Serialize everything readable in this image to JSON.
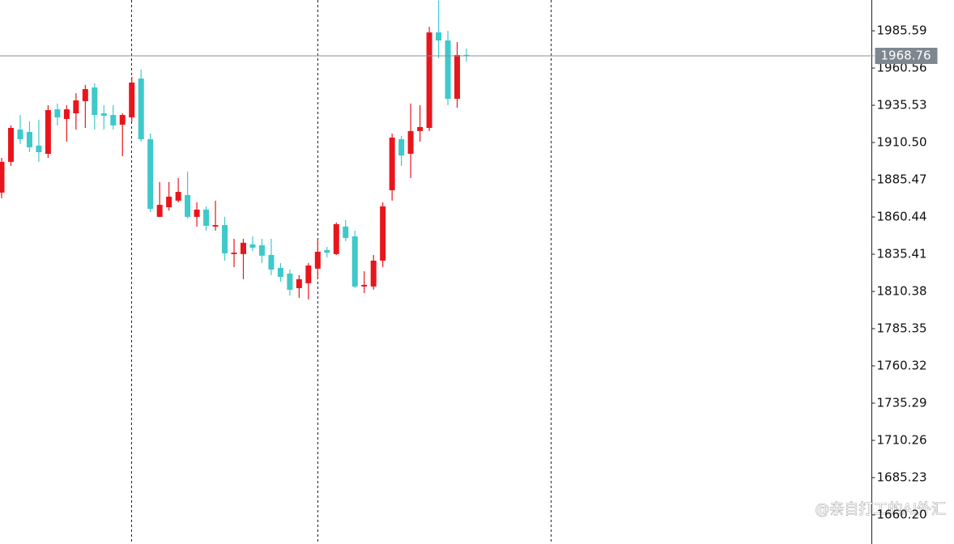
{
  "chart_data": {
    "type": "candlestick",
    "open": [
      1876.8,
      1897.5,
      1919.2,
      1917.6,
      1908.4,
      1902.9,
      1932.8,
      1926.3,
      1930.1,
      1938.3,
      1947.5,
      1930.1,
      1929.0,
      1922.5,
      1927.4,
      1953.5,
      1912.7,
      1860.5,
      1867.0,
      1871.4,
      1875.2,
      1860.5,
      1865.4,
      1854.0,
      1855.0,
      1835.5,
      1835.5,
      1842.0,
      1841.4,
      1834.9,
      1826.2,
      1822.4,
      1812.6,
      1815.9,
      1825.7,
      1838.2,
      1835.5,
      1854.0,
      1847.4,
      1813.7,
      1813.7,
      1831.1,
      1878.4,
      1912.7,
      1902.9,
      1918.2,
      1920.3,
      1984.5,
      1979.1,
      1939.9,
      1969.4
    ],
    "high": [
      1900.2,
      1922.0,
      1929.0,
      1924.7,
      1925.8,
      1935.6,
      1936.7,
      1935.6,
      1943.7,
      1949.2,
      1950.3,
      1935.6,
      1935.6,
      1930.1,
      1954.6,
      1959.5,
      1916.5,
      1883.9,
      1883.9,
      1886.6,
      1891.0,
      1870.3,
      1867.6,
      1871.4,
      1860.5,
      1845.8,
      1845.8,
      1847.4,
      1845.8,
      1845.8,
      1829.5,
      1825.1,
      1821.3,
      1829.5,
      1845.2,
      1840.3,
      1856.7,
      1858.3,
      1851.2,
      1824.0,
      1834.9,
      1870.3,
      1916.5,
      1914.9,
      1936.7,
      1935.6,
      1988.3,
      2006.0,
      1985.6,
      1978.0,
      1973.7
    ],
    "low": [
      1873.0,
      1894.8,
      1909.5,
      1904.0,
      1897.5,
      1900.2,
      1922.0,
      1911.1,
      1919.2,
      1920.3,
      1919.2,
      1919.2,
      1919.2,
      1901.3,
      1924.7,
      1911.1,
      1863.7,
      1860.5,
      1864.8,
      1870.3,
      1859.4,
      1854.0,
      1851.2,
      1851.2,
      1831.1,
      1826.7,
      1818.6,
      1837.6,
      1829.5,
      1821.3,
      1817.0,
      1807.7,
      1806.1,
      1805.0,
      1818.6,
      1833.3,
      1834.9,
      1844.2,
      1812.6,
      1809.3,
      1811.5,
      1826.7,
      1871.4,
      1894.8,
      1886.6,
      1911.1,
      1918.2,
      1967.1,
      1935.6,
      1933.9,
      1964.9
    ],
    "close": [
      1897.5,
      1920.3,
      1912.7,
      1907.3,
      1904.0,
      1932.3,
      1927.4,
      1932.8,
      1938.8,
      1946.4,
      1929.0,
      1928.5,
      1922.0,
      1929.0,
      1950.8,
      1912.7,
      1865.9,
      1868.6,
      1874.1,
      1877.3,
      1860.5,
      1865.4,
      1854.5,
      1855.0,
      1836.0,
      1836.5,
      1843.1,
      1839.8,
      1834.4,
      1825.1,
      1820.2,
      1811.5,
      1818.6,
      1827.8,
      1837.1,
      1836.5,
      1855.6,
      1846.3,
      1813.7,
      1814.8,
      1831.1,
      1867.6,
      1913.8,
      1901.8,
      1918.2,
      1920.9,
      1984.5,
      1979.1,
      1939.9,
      1969.3,
      1968.76
    ],
    "up_color": "#e8161c",
    "down_color": "#3ec9cb",
    "ylim": [
      1640.6,
      2006.3
    ],
    "yticks": [
      1985.59,
      1960.56,
      1935.53,
      {
        "value": 1910.5,
        "label": "1910.50"
      },
      1885.47,
      1860.44,
      1835.41,
      1810.38,
      1785.35,
      1760.32,
      1735.29,
      1710.26,
      1685.23,
      {
        "value": 1660.2,
        "label": "1660.20"
      }
    ],
    "last_price": 1968.76
  },
  "watermark": "@亲自打工的AI外汇"
}
